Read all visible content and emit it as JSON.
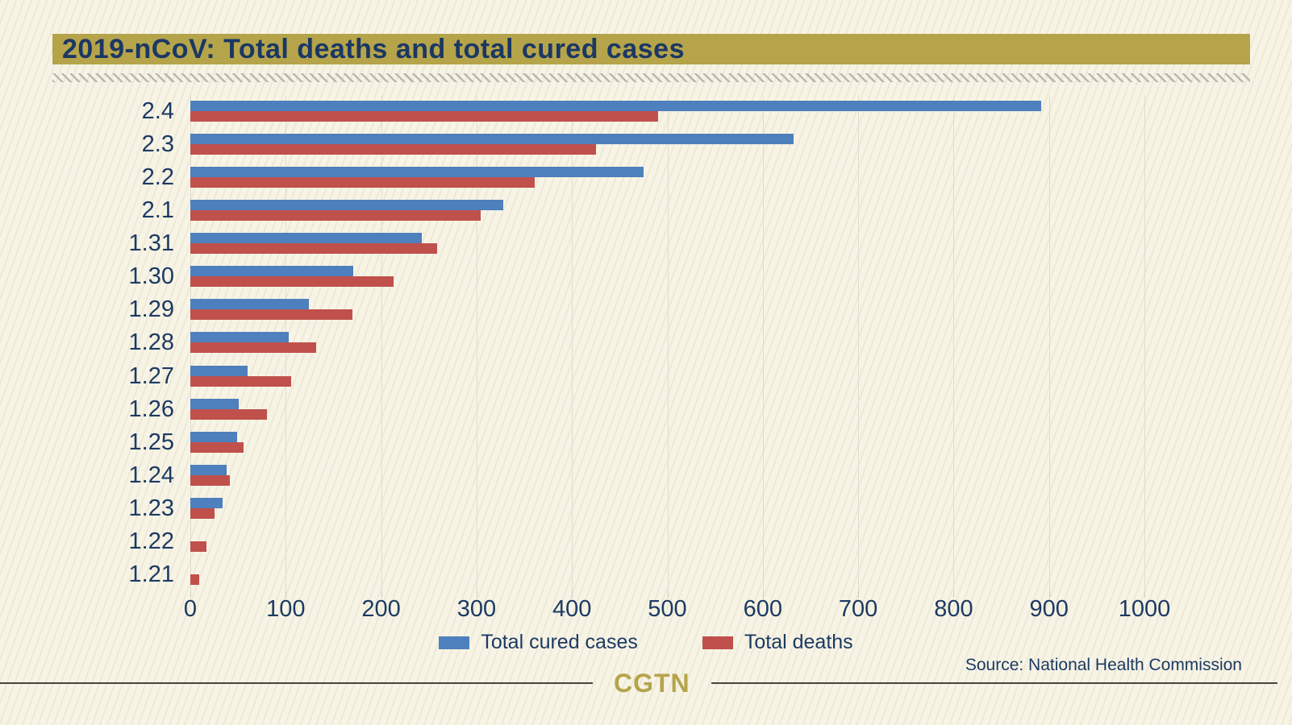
{
  "header": {
    "title": "2019-nCoV: Total deaths and total cured cases"
  },
  "chart_data": {
    "type": "bar",
    "orientation": "horizontal",
    "title": "2019-nCoV: Total deaths and total cured cases",
    "categories": [
      "2.4",
      "2.3",
      "2.2",
      "2.1",
      "1.31",
      "1.30",
      "1.29",
      "1.28",
      "1.27",
      "1.26",
      "1.25",
      "1.24",
      "1.23",
      "1.22",
      "1.21"
    ],
    "series": [
      {
        "name": "Total cured cases",
        "color": "#4e80bd",
        "values": [
          892,
          632,
          475,
          328,
          243,
          171,
          124,
          103,
          60,
          51,
          49,
          38,
          34,
          0,
          0
        ]
      },
      {
        "name": "Total deaths",
        "color": "#c0504b",
        "values": [
          490,
          425,
          361,
          304,
          259,
          213,
          170,
          132,
          106,
          80,
          56,
          41,
          25,
          17,
          9
        ]
      }
    ],
    "x_ticks": [
      0,
      100,
      200,
      300,
      400,
      500,
      600,
      700,
      800,
      900,
      1000
    ],
    "xlim": [
      0,
      1060
    ],
    "grid": "vertical-light",
    "legend_position": "bottom-center"
  },
  "footer": {
    "source": "Source: National Health Commission",
    "logo": "CGTN"
  },
  "colors": {
    "background": "#f7f4e6",
    "title_band": "#b5a44a",
    "text_navy": "#1c3a63",
    "cured_blue": "#4e80bd",
    "deaths_red": "#c0504b",
    "gridline": "#e0ddcf"
  }
}
